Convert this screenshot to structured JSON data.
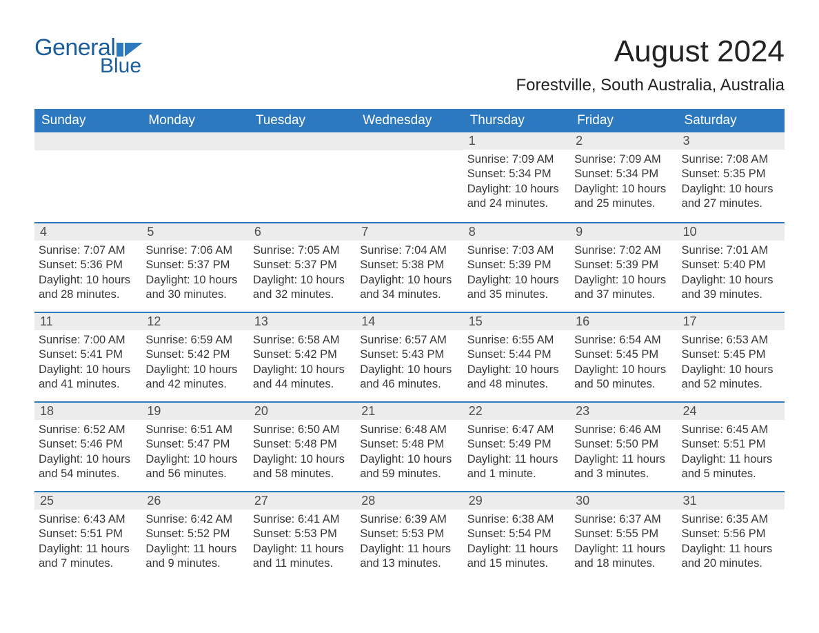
{
  "logo": {
    "word1": "General",
    "word2": "Blue",
    "flag_color": "#2d79bf"
  },
  "header": {
    "month_title": "August 2024",
    "location": "Forestville, South Australia, Australia"
  },
  "colors": {
    "header_bg": "#2d79bf",
    "header_text": "#ffffff",
    "daynum_bg": "#ececec",
    "row_divider": "#2d79bf",
    "body_text": "#383838",
    "logo_text": "#1c5d9c",
    "page_bg": "#ffffff"
  },
  "weekdays": [
    "Sunday",
    "Monday",
    "Tuesday",
    "Wednesday",
    "Thursday",
    "Friday",
    "Saturday"
  ],
  "weeks": [
    [
      null,
      null,
      null,
      null,
      {
        "n": "1",
        "sr": "Sunrise: 7:09 AM",
        "ss": "Sunset: 5:34 PM",
        "dl1": "Daylight: 10 hours",
        "dl2": "and 24 minutes."
      },
      {
        "n": "2",
        "sr": "Sunrise: 7:09 AM",
        "ss": "Sunset: 5:34 PM",
        "dl1": "Daylight: 10 hours",
        "dl2": "and 25 minutes."
      },
      {
        "n": "3",
        "sr": "Sunrise: 7:08 AM",
        "ss": "Sunset: 5:35 PM",
        "dl1": "Daylight: 10 hours",
        "dl2": "and 27 minutes."
      }
    ],
    [
      {
        "n": "4",
        "sr": "Sunrise: 7:07 AM",
        "ss": "Sunset: 5:36 PM",
        "dl1": "Daylight: 10 hours",
        "dl2": "and 28 minutes."
      },
      {
        "n": "5",
        "sr": "Sunrise: 7:06 AM",
        "ss": "Sunset: 5:37 PM",
        "dl1": "Daylight: 10 hours",
        "dl2": "and 30 minutes."
      },
      {
        "n": "6",
        "sr": "Sunrise: 7:05 AM",
        "ss": "Sunset: 5:37 PM",
        "dl1": "Daylight: 10 hours",
        "dl2": "and 32 minutes."
      },
      {
        "n": "7",
        "sr": "Sunrise: 7:04 AM",
        "ss": "Sunset: 5:38 PM",
        "dl1": "Daylight: 10 hours",
        "dl2": "and 34 minutes."
      },
      {
        "n": "8",
        "sr": "Sunrise: 7:03 AM",
        "ss": "Sunset: 5:39 PM",
        "dl1": "Daylight: 10 hours",
        "dl2": "and 35 minutes."
      },
      {
        "n": "9",
        "sr": "Sunrise: 7:02 AM",
        "ss": "Sunset: 5:39 PM",
        "dl1": "Daylight: 10 hours",
        "dl2": "and 37 minutes."
      },
      {
        "n": "10",
        "sr": "Sunrise: 7:01 AM",
        "ss": "Sunset: 5:40 PM",
        "dl1": "Daylight: 10 hours",
        "dl2": "and 39 minutes."
      }
    ],
    [
      {
        "n": "11",
        "sr": "Sunrise: 7:00 AM",
        "ss": "Sunset: 5:41 PM",
        "dl1": "Daylight: 10 hours",
        "dl2": "and 41 minutes."
      },
      {
        "n": "12",
        "sr": "Sunrise: 6:59 AM",
        "ss": "Sunset: 5:42 PM",
        "dl1": "Daylight: 10 hours",
        "dl2": "and 42 minutes."
      },
      {
        "n": "13",
        "sr": "Sunrise: 6:58 AM",
        "ss": "Sunset: 5:42 PM",
        "dl1": "Daylight: 10 hours",
        "dl2": "and 44 minutes."
      },
      {
        "n": "14",
        "sr": "Sunrise: 6:57 AM",
        "ss": "Sunset: 5:43 PM",
        "dl1": "Daylight: 10 hours",
        "dl2": "and 46 minutes."
      },
      {
        "n": "15",
        "sr": "Sunrise: 6:55 AM",
        "ss": "Sunset: 5:44 PM",
        "dl1": "Daylight: 10 hours",
        "dl2": "and 48 minutes."
      },
      {
        "n": "16",
        "sr": "Sunrise: 6:54 AM",
        "ss": "Sunset: 5:45 PM",
        "dl1": "Daylight: 10 hours",
        "dl2": "and 50 minutes."
      },
      {
        "n": "17",
        "sr": "Sunrise: 6:53 AM",
        "ss": "Sunset: 5:45 PM",
        "dl1": "Daylight: 10 hours",
        "dl2": "and 52 minutes."
      }
    ],
    [
      {
        "n": "18",
        "sr": "Sunrise: 6:52 AM",
        "ss": "Sunset: 5:46 PM",
        "dl1": "Daylight: 10 hours",
        "dl2": "and 54 minutes."
      },
      {
        "n": "19",
        "sr": "Sunrise: 6:51 AM",
        "ss": "Sunset: 5:47 PM",
        "dl1": "Daylight: 10 hours",
        "dl2": "and 56 minutes."
      },
      {
        "n": "20",
        "sr": "Sunrise: 6:50 AM",
        "ss": "Sunset: 5:48 PM",
        "dl1": "Daylight: 10 hours",
        "dl2": "and 58 minutes."
      },
      {
        "n": "21",
        "sr": "Sunrise: 6:48 AM",
        "ss": "Sunset: 5:48 PM",
        "dl1": "Daylight: 10 hours",
        "dl2": "and 59 minutes."
      },
      {
        "n": "22",
        "sr": "Sunrise: 6:47 AM",
        "ss": "Sunset: 5:49 PM",
        "dl1": "Daylight: 11 hours",
        "dl2": "and 1 minute."
      },
      {
        "n": "23",
        "sr": "Sunrise: 6:46 AM",
        "ss": "Sunset: 5:50 PM",
        "dl1": "Daylight: 11 hours",
        "dl2": "and 3 minutes."
      },
      {
        "n": "24",
        "sr": "Sunrise: 6:45 AM",
        "ss": "Sunset: 5:51 PM",
        "dl1": "Daylight: 11 hours",
        "dl2": "and 5 minutes."
      }
    ],
    [
      {
        "n": "25",
        "sr": "Sunrise: 6:43 AM",
        "ss": "Sunset: 5:51 PM",
        "dl1": "Daylight: 11 hours",
        "dl2": "and 7 minutes."
      },
      {
        "n": "26",
        "sr": "Sunrise: 6:42 AM",
        "ss": "Sunset: 5:52 PM",
        "dl1": "Daylight: 11 hours",
        "dl2": "and 9 minutes."
      },
      {
        "n": "27",
        "sr": "Sunrise: 6:41 AM",
        "ss": "Sunset: 5:53 PM",
        "dl1": "Daylight: 11 hours",
        "dl2": "and 11 minutes."
      },
      {
        "n": "28",
        "sr": "Sunrise: 6:39 AM",
        "ss": "Sunset: 5:53 PM",
        "dl1": "Daylight: 11 hours",
        "dl2": "and 13 minutes."
      },
      {
        "n": "29",
        "sr": "Sunrise: 6:38 AM",
        "ss": "Sunset: 5:54 PM",
        "dl1": "Daylight: 11 hours",
        "dl2": "and 15 minutes."
      },
      {
        "n": "30",
        "sr": "Sunrise: 6:37 AM",
        "ss": "Sunset: 5:55 PM",
        "dl1": "Daylight: 11 hours",
        "dl2": "and 18 minutes."
      },
      {
        "n": "31",
        "sr": "Sunrise: 6:35 AM",
        "ss": "Sunset: 5:56 PM",
        "dl1": "Daylight: 11 hours",
        "dl2": "and 20 minutes."
      }
    ]
  ]
}
